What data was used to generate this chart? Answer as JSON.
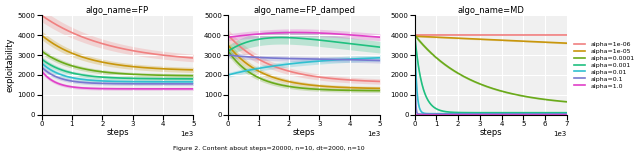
{
  "subplots": [
    {
      "title": "algo_name=FP"
    },
    {
      "title": "algo_name=FP_damped"
    },
    {
      "title": "algo_name=MD"
    }
  ],
  "alpha_colors": [
    "#f08080",
    "#c8960c",
    "#6aaa1a",
    "#20c080",
    "#30c0d0",
    "#7878d0",
    "#e040c8"
  ],
  "alpha_labels": [
    "alpha=1e-06",
    "alpha=1e-05",
    "alpha=0.0001",
    "alpha=0.001",
    "alpha=0.01",
    "alpha=0.1",
    "alpha=1.0"
  ],
  "ylabel": "exploitability",
  "xlabel": "steps",
  "bg_color": "#f0f0f0",
  "grid_color": "white",
  "line_width": 1.2,
  "band_alpha": 0.25,
  "caption": "Figure 2. Content with steps=20000, n=10, dt=2000, n=10"
}
